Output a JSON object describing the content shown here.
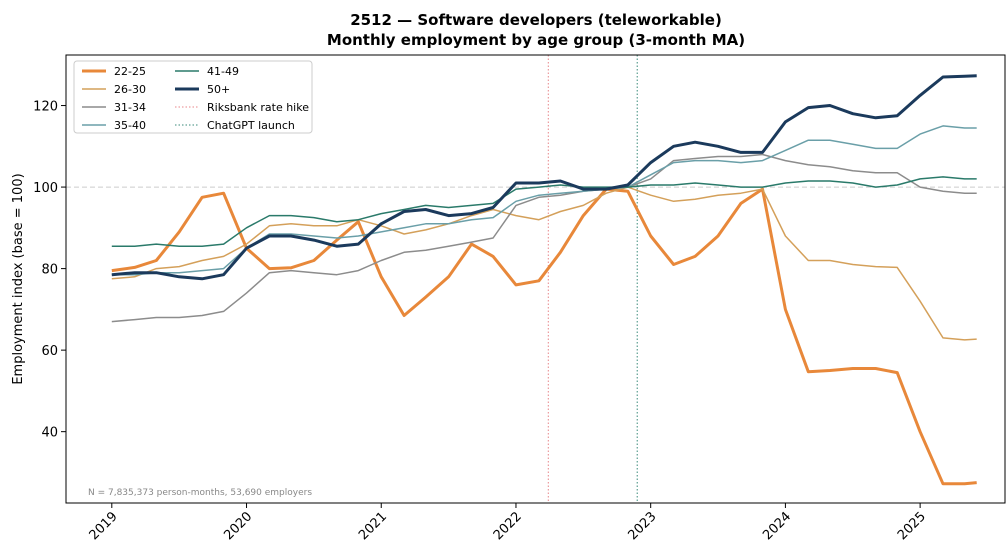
{
  "chart_data": {
    "type": "line",
    "title": "2512 — Software developers (teleworkable)",
    "subtitle": "Monthly employment by age group (3-month MA)",
    "ylabel": "Employment index (base = 100)",
    "note": "N = 7,835,373 person-months, 53,690 employers",
    "x": [
      2019.0,
      2019.17,
      2019.33,
      2019.5,
      2019.67,
      2019.83,
      2020.0,
      2020.17,
      2020.33,
      2020.5,
      2020.67,
      2020.83,
      2021.0,
      2021.17,
      2021.33,
      2021.5,
      2021.67,
      2021.83,
      2022.0,
      2022.17,
      2022.33,
      2022.5,
      2022.67,
      2022.83,
      2023.0,
      2023.17,
      2023.33,
      2023.5,
      2023.67,
      2023.83,
      2024.0,
      2024.17,
      2024.33,
      2024.5,
      2024.67,
      2024.83,
      2025.0,
      2025.17,
      2025.33,
      2025.42
    ],
    "xlim": [
      2018.66,
      2025.63
    ],
    "xticks": [
      2019,
      2020,
      2021,
      2022,
      2023,
      2024,
      2025
    ],
    "ylim": [
      22.5,
      132.4
    ],
    "yticks": [
      40,
      60,
      80,
      100,
      120
    ],
    "hline": 100,
    "vlines": [
      {
        "name": "Riksbank rate hike",
        "x": 2022.24,
        "color": "#e8868a"
      },
      {
        "name": "ChatGPT launch",
        "x": 2022.9,
        "color": "#3a8a7a"
      }
    ],
    "legend": "upper left",
    "series": [
      {
        "name": "22-25",
        "color": "#e8883a",
        "width": 3,
        "values": [
          79.5,
          80.3,
          82,
          89,
          97.5,
          98.5,
          85,
          80,
          80.2,
          82,
          87,
          91.5,
          78,
          68.5,
          73,
          78,
          86,
          83,
          76,
          77,
          84,
          93,
          99.5,
          99,
          88,
          81,
          83,
          88,
          96,
          99.5,
          70,
          54.7,
          55,
          55.5,
          55.5,
          54.5,
          40,
          27.2,
          27.2,
          27.5
        ]
      },
      {
        "name": "26-30",
        "color": "#d4a05a",
        "width": 1.5,
        "values": [
          77.5,
          78,
          80,
          80.5,
          82,
          83,
          86,
          90.5,
          91,
          90.5,
          90.5,
          92,
          90.5,
          88.5,
          89.5,
          91,
          93,
          94.5,
          93,
          92,
          94,
          95.5,
          98.5,
          100,
          98,
          96.5,
          97,
          98,
          98.5,
          99.5,
          88,
          82,
          82,
          81,
          80.5,
          80.3,
          72,
          63,
          62.5,
          62.7
        ]
      },
      {
        "name": "31-34",
        "color": "#8c8c8c",
        "width": 1.5,
        "values": [
          67,
          67.5,
          68,
          68,
          68.5,
          69.5,
          74,
          79,
          79.5,
          79,
          78.5,
          79.5,
          82,
          84,
          84.5,
          85.5,
          86.5,
          87.5,
          95.5,
          97.5,
          98,
          99,
          99.5,
          100,
          102,
          106.5,
          107,
          107.5,
          107.5,
          108,
          106.5,
          105.5,
          105,
          104,
          103.5,
          103.5,
          100,
          99,
          98.5,
          98.5
        ]
      },
      {
        "name": "35-40",
        "color": "#6a9fa8",
        "width": 1.5,
        "values": [
          78.5,
          78.5,
          79,
          79,
          79.5,
          80,
          85,
          88.5,
          88.5,
          88,
          87.5,
          88,
          89,
          90,
          91,
          91,
          92,
          92.5,
          96.5,
          98,
          98.5,
          99,
          99.5,
          100,
          103,
          106,
          106.5,
          106.5,
          106,
          106.5,
          109,
          111.5,
          111.5,
          110.5,
          109.5,
          109.5,
          113,
          115,
          114.5,
          114.5
        ]
      },
      {
        "name": "41-49",
        "color": "#2a7a6a",
        "width": 1.5,
        "values": [
          85.5,
          85.5,
          86,
          85.5,
          85.5,
          86,
          90,
          93,
          93,
          92.5,
          91.5,
          92,
          93.5,
          94.5,
          95.5,
          95,
          95.5,
          96,
          99.5,
          100,
          100.5,
          100,
          100,
          100,
          100.5,
          100.5,
          101,
          100.5,
          100,
          100,
          101,
          101.5,
          101.5,
          101,
          100,
          100.5,
          102,
          102.5,
          102,
          102
        ]
      },
      {
        "name": "50+",
        "color": "#1b3a5c",
        "width": 3,
        "values": [
          78.5,
          79,
          79,
          78,
          77.5,
          78.5,
          85,
          88,
          88,
          87,
          85.5,
          86,
          91,
          94,
          94.5,
          93,
          93.5,
          95,
          101,
          101,
          101.5,
          99.5,
          99.5,
          100.5,
          106,
          110,
          111,
          110,
          108.5,
          108.5,
          116,
          119.5,
          120,
          118,
          117,
          117.5,
          122.5,
          127,
          127.2,
          127.3
        ]
      }
    ]
  }
}
